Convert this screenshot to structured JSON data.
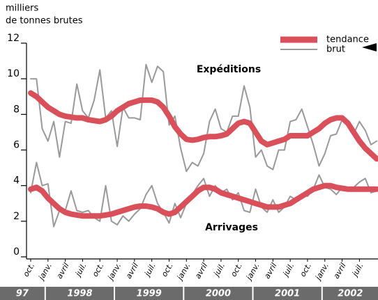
{
  "chart_data": {
    "type": "line",
    "ylabel": [
      "milliers",
      "de tonnes brutes"
    ],
    "categories": [
      "oct.",
      null,
      null,
      "janv.",
      null,
      null,
      "avril",
      null,
      null,
      "juil.",
      null,
      null,
      "oct.",
      null,
      null,
      "janv.",
      null,
      null,
      "avril",
      null,
      null,
      "juil.",
      null,
      null,
      "oct.",
      null,
      null,
      "janv.",
      null,
      null,
      "avril",
      null,
      null,
      "juil.",
      null,
      null,
      "oct.",
      null,
      null,
      "janv.",
      null,
      null,
      "avril",
      null,
      null,
      "juil.",
      null,
      null,
      "oct.",
      null,
      null,
      "janv.",
      null,
      null,
      "avril",
      null,
      null,
      "juil.",
      null,
      null,
      null
    ],
    "years": [
      "97",
      "1998",
      "1999",
      "2000",
      "2001",
      "2002"
    ],
    "ylim": [
      0,
      12
    ],
    "yticks": [
      0,
      2,
      4,
      6,
      8,
      10,
      12
    ],
    "legend_position": "top-right",
    "groups": [
      {
        "label": "Expéditions",
        "series": [
          {
            "name": "tendance",
            "color": "#d9505a",
            "values": [
              9.2,
              9.0,
              8.7,
              8.4,
              8.2,
              8.0,
              7.9,
              7.85,
              7.8,
              7.8,
              7.7,
              7.65,
              7.6,
              7.7,
              7.9,
              8.2,
              8.4,
              8.6,
              8.7,
              8.8,
              8.8,
              8.8,
              8.7,
              8.4,
              7.9,
              7.3,
              6.9,
              6.6,
              6.55,
              6.6,
              6.7,
              6.75,
              6.75,
              6.8,
              6.9,
              7.2,
              7.5,
              7.6,
              7.5,
              7.0,
              6.5,
              6.3,
              6.4,
              6.5,
              6.6,
              6.8,
              6.8,
              6.8,
              6.8,
              7.0,
              7.2,
              7.5,
              7.7,
              7.8,
              7.8,
              7.5,
              7.0,
              6.5,
              6.1,
              5.8,
              5.5
            ]
          },
          {
            "name": "brut",
            "color": "#999999",
            "values": [
              10,
              10,
              7.2,
              6.5,
              7.6,
              5.6,
              7.6,
              7.5,
              9.7,
              8.2,
              7.8,
              8.8,
              10.5,
              7.8,
              8.2,
              6.2,
              8.4,
              7.8,
              7.8,
              7.7,
              10.8,
              9.8,
              10.7,
              10.4,
              7.4,
              7.9,
              6.1,
              4.8,
              5.3,
              5.1,
              5.8,
              7.6,
              8.3,
              7.2,
              7.0,
              7.9,
              7.9,
              9.6,
              8.4,
              5.6,
              6.0,
              5.1,
              4.9,
              6.0,
              6.0,
              7.6,
              7.7,
              8.3,
              7.3,
              6.3,
              5.1,
              5.8,
              6.8,
              6.9,
              7.7,
              7.6,
              6.9,
              7.6,
              7.1,
              6.3,
              6.5
            ]
          }
        ]
      },
      {
        "label": "Arrivages",
        "series": [
          {
            "name": "tendance",
            "color": "#d9505a",
            "values": [
              3.8,
              3.9,
              3.7,
              3.3,
              3.0,
              2.7,
              2.5,
              2.4,
              2.35,
              2.3,
              2.3,
              2.3,
              2.3,
              2.35,
              2.4,
              2.5,
              2.6,
              2.7,
              2.8,
              2.85,
              2.85,
              2.8,
              2.7,
              2.5,
              2.4,
              2.5,
              2.8,
              3.1,
              3.4,
              3.7,
              3.9,
              3.9,
              3.8,
              3.6,
              3.5,
              3.4,
              3.3,
              3.2,
              3.1,
              3.0,
              2.9,
              2.8,
              2.8,
              2.8,
              2.9,
              3.0,
              3.2,
              3.4,
              3.6,
              3.8,
              3.9,
              4.0,
              4.0,
              3.9,
              3.85,
              3.8,
              3.8,
              3.8,
              3.8,
              3.8,
              3.8
            ]
          },
          {
            "name": "brut",
            "color": "#999999",
            "values": [
              3.6,
              5.3,
              4.0,
              4.1,
              1.7,
              2.6,
              2.6,
              3.7,
              2.6,
              2.5,
              2.6,
              2.2,
              2.0,
              4.0,
              2.0,
              1.8,
              2.3,
              2.0,
              2.4,
              2.7,
              3.5,
              4.0,
              3.0,
              2.5,
              1.9,
              3.0,
              2.2,
              3.0,
              3.5,
              4.0,
              4.4,
              3.4,
              4.0,
              3.6,
              3.8,
              3.2,
              3.6,
              2.6,
              2.5,
              3.8,
              2.8,
              2.5,
              3.2,
              2.5,
              2.8,
              3.4,
              3.2,
              3.5,
              3.4,
              3.8,
              4.6,
              3.9,
              3.8,
              3.5,
              3.9,
              3.8,
              3.9,
              4.2,
              4.4,
              3.6,
              3.7
            ]
          }
        ]
      }
    ]
  }
}
